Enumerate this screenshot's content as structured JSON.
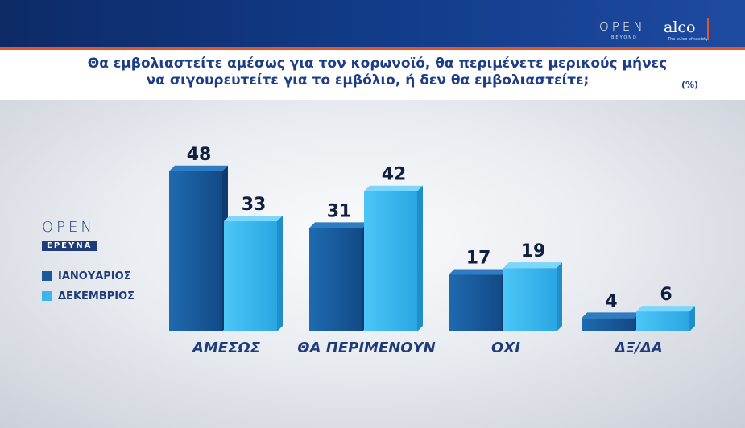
{
  "header": {
    "brand_open": "OPEN",
    "brand_beyond": "BEYOND",
    "brand_alco": "alco",
    "brand_tagline": "The pulse of society"
  },
  "question": {
    "line1": "Θα εμβολιαστείτε αμέσως για τον κορωνοϊό, θα περιμένετε μερικούς μήνες",
    "line2": "να σιγουρευτείτε για το εμβόλιο, ή δεν θα εμβολιαστείτε;",
    "unit": "(%)"
  },
  "legend": {
    "logo_open": "OPEN",
    "logo_ereuna": "ΕΡΕΥΝΑ",
    "items": [
      {
        "label": "ΙΑΝΟΥΑΡΙΟΣ",
        "color": "#1a5a9c"
      },
      {
        "label": "ΔΕΚΕΜΒΡΙΟΣ",
        "color": "#3db4ee"
      }
    ]
  },
  "chart_data": {
    "type": "bar",
    "title": "Θα εμβολιαστείτε αμέσως για τον κορωνοϊό, θα περιμένετε μερικούς μήνες να σιγουρευτείτε για το εμβόλιο, ή δεν θα εμβολιαστείτε;",
    "unit": "(%)",
    "categories": [
      "ΑΜΕΣΩΣ",
      "ΘΑ ΠΕΡΙΜΕΝΟΥΝ",
      "ΟΧΙ",
      "ΔΞ/ΔΑ"
    ],
    "series": [
      {
        "name": "ΙΑΝΟΥΑΡΙΟΣ",
        "values": [
          48,
          31,
          17,
          4
        ],
        "color": "#1a5a9c"
      },
      {
        "name": "ΔΕΚΕΜΒΡΙΟΣ",
        "values": [
          33,
          42,
          19,
          6
        ],
        "color": "#3db4ee"
      }
    ],
    "ylim": [
      0,
      50
    ],
    "grid": false,
    "legend_position": "left"
  }
}
